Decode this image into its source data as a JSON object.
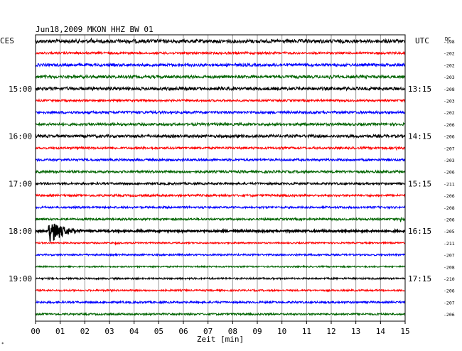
{
  "chart_data": {
    "type": "line",
    "title": "Jun18,2009   MKON HHZ BW 01",
    "left_header": "CES",
    "right_header": "UTC",
    "dc_header": "DC",
    "xlabel": "Zeit [min]",
    "x_ticks": [
      "00",
      "01",
      "02",
      "03",
      "04",
      "05",
      "06",
      "07",
      "08",
      "09",
      "10",
      "11",
      "12",
      "13",
      "14",
      "15"
    ],
    "xlim": [
      0,
      15
    ],
    "grid": true,
    "trace_colors": [
      "#000000",
      "#ff0000",
      "#0000ff",
      "#006400"
    ],
    "left_hour_labels": [
      {
        "row": 4,
        "text": "15:00"
      },
      {
        "row": 8,
        "text": "16:00"
      },
      {
        "row": 12,
        "text": "17:00"
      },
      {
        "row": 16,
        "text": "18:00"
      },
      {
        "row": 20,
        "text": "19:00"
      }
    ],
    "right_hour_labels": [
      {
        "row": 4,
        "text": "13:15"
      },
      {
        "row": 8,
        "text": "14:15"
      },
      {
        "row": 12,
        "text": "15:15"
      },
      {
        "row": 16,
        "text": "16:15"
      },
      {
        "row": 20,
        "text": "17:15"
      }
    ],
    "dc_values": [
      "-198",
      "-202",
      "-202",
      "-203",
      "-208",
      "-203",
      "-202",
      "-206",
      "-206",
      "-207",
      "-203",
      "-206",
      "-211",
      "-206",
      "-208",
      "-206",
      "-205",
      "-211",
      "-207",
      "-208",
      "-210",
      "-206",
      "-207",
      "-206"
    ],
    "traces": [
      {
        "color": 0,
        "noise": 2.5,
        "events": [
          {
            "t": 2.2,
            "amp": 4,
            "dur": 0.5
          }
        ]
      },
      {
        "color": 1,
        "noise": 1.5
      },
      {
        "color": 2,
        "noise": 2.0
      },
      {
        "color": 3,
        "noise": 2.0,
        "events": [
          {
            "t": 11.9,
            "amp": 3,
            "dur": 0.3
          }
        ]
      },
      {
        "color": 0,
        "noise": 2.2
      },
      {
        "color": 1,
        "noise": 1.4
      },
      {
        "color": 2,
        "noise": 1.8
      },
      {
        "color": 3,
        "noise": 1.8
      },
      {
        "color": 0,
        "noise": 2.0,
        "events": [
          {
            "t": 7.8,
            "amp": 2.5,
            "dur": 0.8
          }
        ]
      },
      {
        "color": 1,
        "noise": 1.5,
        "events": [
          {
            "t": 14.6,
            "amp": 3,
            "dur": 0.3
          }
        ]
      },
      {
        "color": 2,
        "noise": 1.6
      },
      {
        "color": 3,
        "noise": 1.7
      },
      {
        "color": 0,
        "noise": 1.5
      },
      {
        "color": 1,
        "noise": 1.5
      },
      {
        "color": 2,
        "noise": 1.4
      },
      {
        "color": 3,
        "noise": 1.5,
        "events": [
          {
            "t": 14.8,
            "amp": 8,
            "dur": 0.25
          }
        ]
      },
      {
        "color": 0,
        "noise": 1.3,
        "thick": true,
        "events": [
          {
            "t": 0.5,
            "amp": 28,
            "dur": 1.4
          }
        ]
      },
      {
        "color": 1,
        "noise": 1.0,
        "events": [
          {
            "t": 3.2,
            "amp": 2,
            "dur": 0.6
          }
        ]
      },
      {
        "color": 2,
        "noise": 1.2
      },
      {
        "color": 3,
        "noise": 1.0
      },
      {
        "color": 0,
        "noise": 1.2
      },
      {
        "color": 1,
        "noise": 1.2
      },
      {
        "color": 2,
        "noise": 1.4
      },
      {
        "color": 3,
        "noise": 1.3
      }
    ]
  }
}
